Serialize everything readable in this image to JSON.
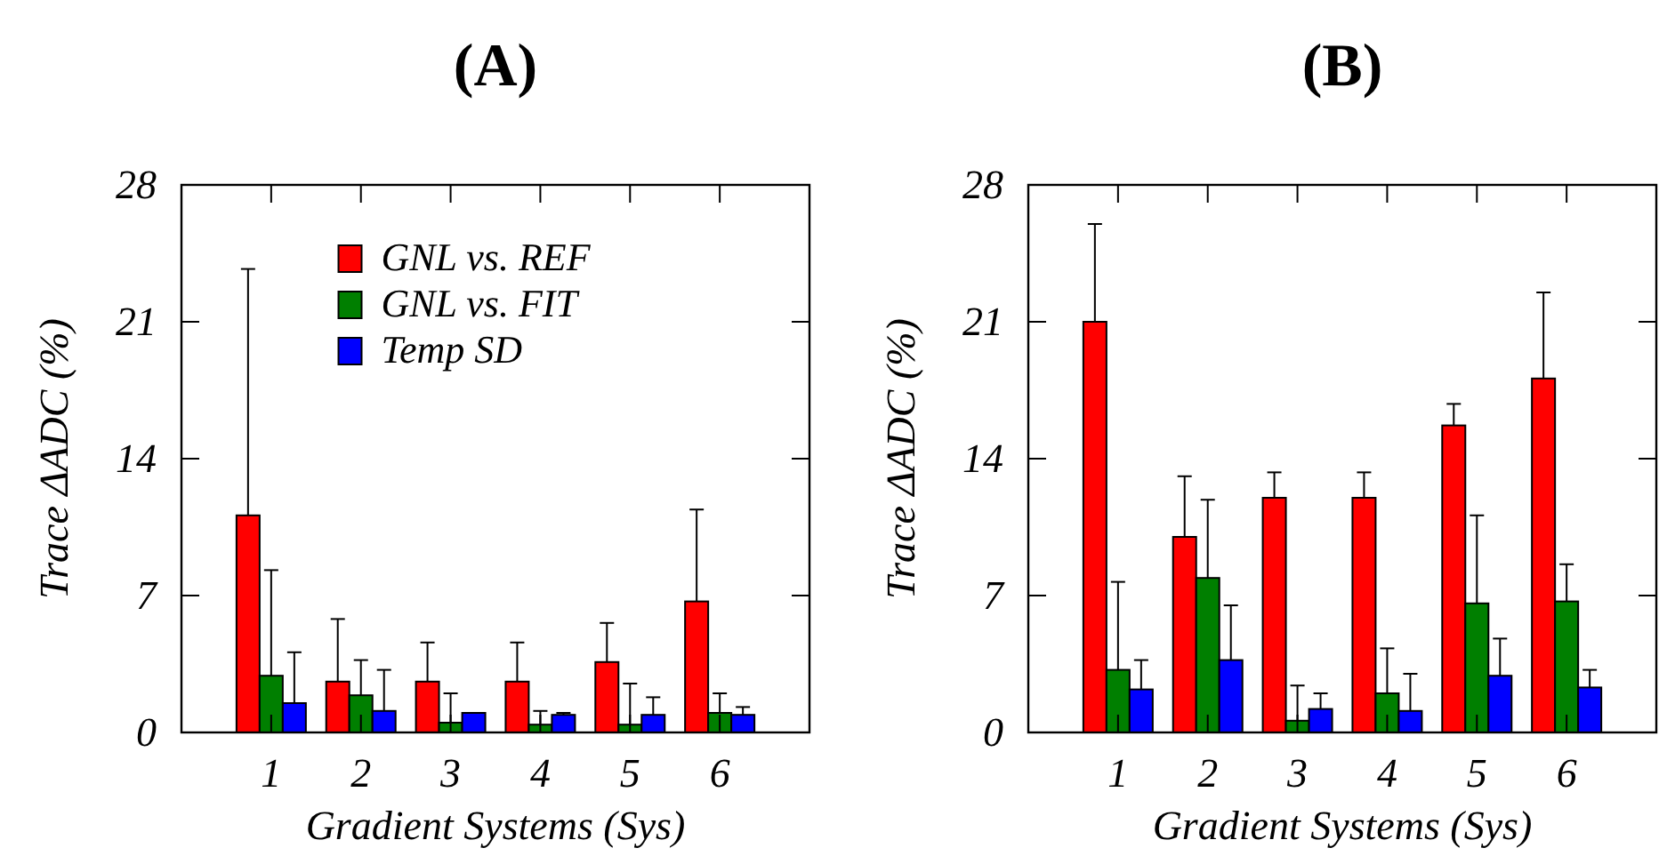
{
  "chart_data": [
    {
      "type": "bar",
      "title": "(A)",
      "xlabel": "Gradient Systems (Sys)",
      "ylabel": "Trace ΔADC (%)",
      "categories": [
        "1",
        "2",
        "3",
        "4",
        "5",
        "6"
      ],
      "ylim": [
        0,
        28
      ],
      "yticks": [
        0,
        7,
        14,
        21,
        28
      ],
      "legend": "top",
      "series": [
        {
          "name": "GNL vs. REF",
          "color": "#ff0000",
          "values": [
            11.1,
            2.6,
            2.6,
            2.6,
            3.6,
            6.7
          ],
          "errors": [
            [
              11.1,
              23.7
            ],
            [
              2.6,
              5.8
            ],
            [
              2.6,
              4.6
            ],
            [
              2.6,
              4.6
            ],
            [
              3.6,
              5.6
            ],
            [
              6.7,
              11.4
            ]
          ]
        },
        {
          "name": "GNL vs. FIT",
          "color": "#007f00",
          "values": [
            2.9,
            1.9,
            0.5,
            0.4,
            0.4,
            1.0
          ],
          "errors": [
            [
              2.9,
              8.3
            ],
            [
              1.9,
              3.7
            ],
            [
              0.5,
              2.0
            ],
            [
              0.4,
              1.1
            ],
            [
              0.4,
              2.5
            ],
            [
              1.0,
              2.0
            ]
          ]
        },
        {
          "name": "Temp SD",
          "color": "#0000ff",
          "values": [
            1.5,
            1.1,
            1.0,
            0.9,
            0.9,
            0.9
          ],
          "errors": [
            [
              1.5,
              4.1
            ],
            [
              1.1,
              3.2
            ],
            null,
            [
              0.9,
              1.0
            ],
            [
              0.9,
              1.8
            ],
            [
              0.9,
              1.3
            ]
          ]
        }
      ]
    },
    {
      "type": "bar",
      "title": "(B)",
      "xlabel": "Gradient Systems (Sys)",
      "ylabel": "Trace ΔADC (%)",
      "categories": [
        "1",
        "2",
        "3",
        "4",
        "5",
        "6"
      ],
      "ylim": [
        0,
        28
      ],
      "yticks": [
        0,
        7,
        14,
        21,
        28
      ],
      "series": [
        {
          "color": "#ff0000",
          "values": [
            21.0,
            10.0,
            12.0,
            12.0,
            15.7,
            18.1
          ],
          "errors": [
            [
              21.0,
              26.0
            ],
            [
              10.0,
              13.1
            ],
            [
              12.0,
              13.3
            ],
            [
              12.0,
              13.3
            ],
            [
              15.7,
              16.8
            ],
            [
              18.1,
              22.5
            ]
          ]
        },
        {
          "color": "#007f00",
          "values": [
            3.2,
            7.9,
            0.6,
            2.0,
            6.6,
            6.7
          ],
          "errors": [
            [
              3.2,
              7.7
            ],
            [
              7.9,
              11.9
            ],
            [
              0.6,
              2.4
            ],
            [
              2.0,
              4.3
            ],
            [
              6.6,
              11.1
            ],
            [
              6.7,
              8.6
            ]
          ]
        },
        {
          "color": "#0000ff",
          "values": [
            2.2,
            3.7,
            1.2,
            1.1,
            2.9,
            2.3
          ],
          "errors": [
            [
              2.2,
              3.7
            ],
            [
              3.7,
              6.5
            ],
            [
              1.2,
              2.0
            ],
            [
              1.1,
              3.0
            ],
            [
              2.9,
              4.8
            ],
            [
              2.3,
              3.2
            ]
          ]
        }
      ]
    }
  ]
}
